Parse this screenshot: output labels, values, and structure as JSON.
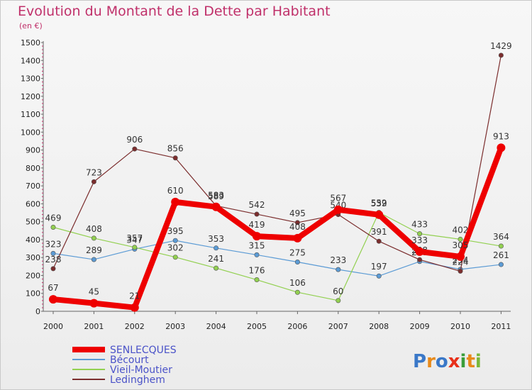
{
  "header": {
    "title": "Evolution du Montant de la Dette par Habitant",
    "subtitle": "(en €)"
  },
  "logo": {
    "text": "Proxiti",
    "letters": [
      "P",
      "r",
      "o",
      "x",
      "i",
      "t",
      "i"
    ],
    "colors": [
      "#3a78c8",
      "#e88a1a",
      "#3a78c8",
      "#e8301a",
      "#3a9e3a",
      "#e88a1a",
      "#7ab83a"
    ]
  },
  "chart_data": {
    "type": "line",
    "title": "Evolution du Montant de la Dette par Habitant",
    "subtitle": "(en €)",
    "x": [
      "2000",
      "2001",
      "2002",
      "2003",
      "2004",
      "2005",
      "2006",
      "2007",
      "2008",
      "2009",
      "2010",
      "2011"
    ],
    "ylim": [
      0,
      1500
    ],
    "yticks": [
      "0",
      "100",
      "200",
      "300",
      "400",
      "500",
      "600",
      "700",
      "800",
      "900",
      "1000",
      "1100",
      "1200",
      "1300",
      "1400",
      "1500"
    ],
    "grid": false,
    "legend_position": "bottom-left",
    "series": [
      {
        "name": "SENLECQUES",
        "color": "#ee0000",
        "values": [
          67,
          45,
          21,
          610,
          583,
          419,
          408,
          567,
          539,
          333,
          305,
          913
        ],
        "labels": [
          "67",
          "45",
          "21",
          "610",
          "583",
          "419",
          "408",
          "567",
          "539",
          "333",
          "305",
          "913"
        ]
      },
      {
        "name": "Bécourt",
        "color": "#5b9bd5",
        "values": [
          323,
          289,
          347,
          395,
          353,
          315,
          275,
          233,
          197,
          278,
          234,
          261
        ],
        "labels": [
          "323",
          "289",
          "347",
          "395",
          "353",
          "315",
          "275",
          "233",
          "197",
          "278",
          "234",
          "261"
        ]
      },
      {
        "name": "Vieil-Moutier",
        "color": "#92d050",
        "values": [
          469,
          408,
          357,
          302,
          241,
          176,
          106,
          60,
          552,
          433,
          402,
          364
        ],
        "labels": [
          "469",
          "408",
          "357",
          "302",
          "241",
          "176",
          "106",
          "60",
          "552",
          "433",
          "402",
          "364"
        ]
      },
      {
        "name": "Ledinghem",
        "color": "#7b2d2d",
        "values": [
          238,
          723,
          906,
          856,
          589,
          542,
          495,
          540,
          391,
          288,
          224,
          1429
        ],
        "labels": [
          "238",
          "723",
          "906",
          "856",
          "589",
          "542",
          "495",
          "540",
          "391",
          "288",
          "224",
          "1429"
        ]
      }
    ]
  }
}
